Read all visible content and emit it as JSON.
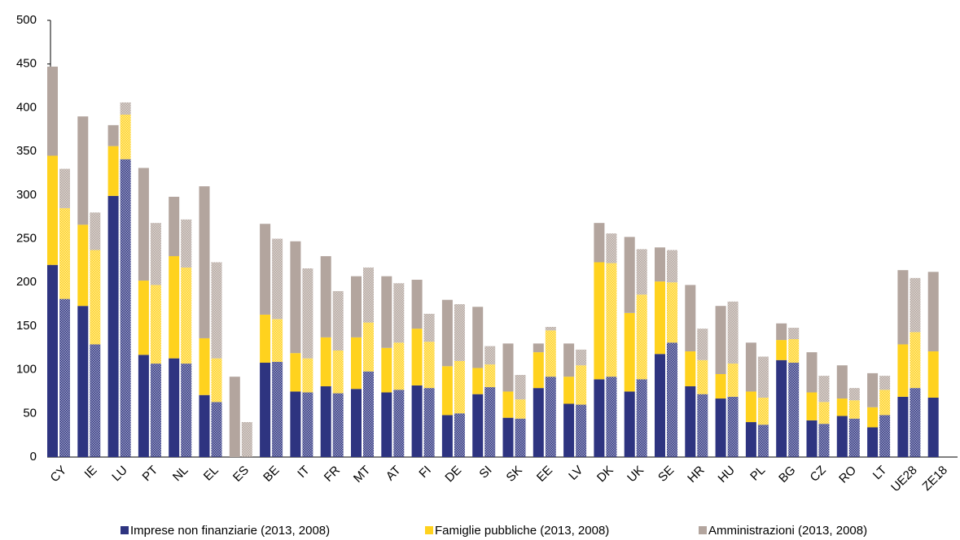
{
  "chart_data": {
    "type": "bar",
    "categories": [
      "CY",
      "IE",
      "LU",
      "PT",
      "NL",
      "EL",
      "ES",
      "BE",
      "IT",
      "FR",
      "MT",
      "AT",
      "FI",
      "DE",
      "SI",
      "SK",
      "EE",
      "LV",
      "DK",
      "UK",
      "SE",
      "HR",
      "HU",
      "PL",
      "BG",
      "CZ",
      "RO",
      "LT",
      "UE28",
      "ZE18"
    ],
    "series": [
      {
        "name": "Imprese non finanziarie (2013, 2008)",
        "color": "#2e3480",
        "values": [
          220,
          173,
          299,
          117,
          113,
          71,
          null,
          108,
          75,
          81,
          78,
          74,
          82,
          48,
          72,
          45,
          79,
          61,
          89,
          75,
          118,
          81,
          67,
          40,
          111,
          42,
          47,
          34,
          69,
          68
        ],
        "values_2008": [
          181,
          129,
          341,
          107,
          107,
          63,
          null,
          109,
          74,
          73,
          98,
          77,
          79,
          50,
          80,
          44,
          92,
          60,
          92,
          89,
          131,
          72,
          69,
          37,
          108,
          38,
          44,
          48,
          79,
          null
        ]
      },
      {
        "name": "Famiglie pubbliche (2013, 2008)",
        "color": "#ffd21e",
        "values": [
          125,
          93,
          57,
          85,
          117,
          65,
          null,
          55,
          44,
          56,
          59,
          51,
          65,
          56,
          30,
          30,
          41,
          31,
          134,
          90,
          83,
          40,
          28,
          35,
          23,
          32,
          20,
          23,
          60,
          53
        ],
        "values_2008": [
          104,
          108,
          51,
          90,
          110,
          50,
          null,
          49,
          39,
          49,
          56,
          54,
          53,
          60,
          26,
          22,
          53,
          45,
          130,
          97,
          69,
          39,
          38,
          31,
          27,
          25,
          21,
          29,
          64,
          null
        ]
      },
      {
        "name": "Amministrazioni (2013, 2008)",
        "color": "#b3a59e",
        "values": [
          102,
          124,
          24,
          129,
          68,
          174,
          92,
          104,
          128,
          93,
          70,
          82,
          56,
          76,
          70,
          55,
          10,
          38,
          45,
          87,
          39,
          76,
          78,
          56,
          19,
          46,
          38,
          39,
          85,
          91
        ],
        "values_2008": [
          45,
          43,
          14,
          71,
          55,
          110,
          40,
          92,
          103,
          68,
          63,
          68,
          32,
          65,
          21,
          28,
          4,
          18,
          34,
          52,
          37,
          36,
          71,
          47,
          13,
          30,
          14,
          16,
          62,
          null
        ]
      }
    ],
    "ylim": [
      0,
      500
    ],
    "yticks": [
      0,
      50,
      100,
      150,
      200,
      250,
      300,
      350,
      400,
      450,
      500
    ],
    "grid": false,
    "legend": "bottom"
  }
}
